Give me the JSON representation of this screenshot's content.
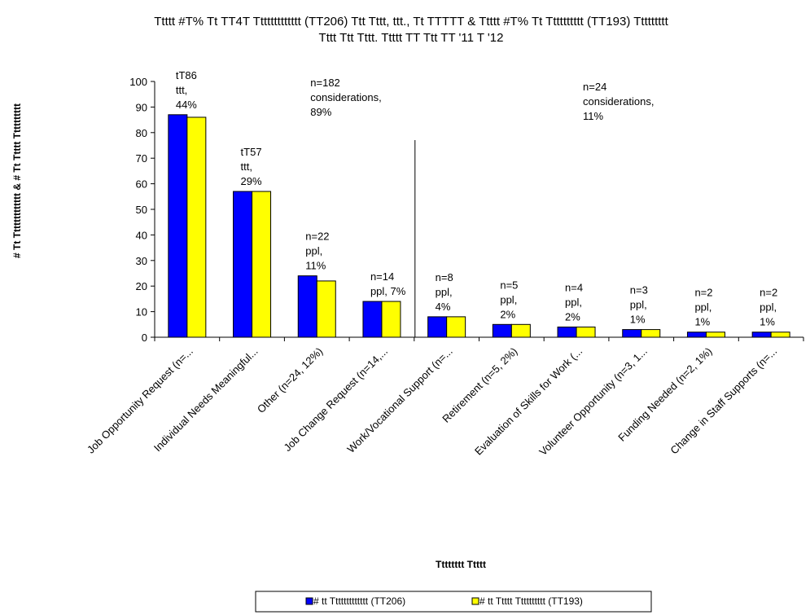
{
  "chart_data": {
    "type": "bar",
    "title_lines": [
      "Ttttt #T% Tt TT4T Ttttttttttttt (TT206) Ttt Tttt, ttt., Tt TTTTT & Ttttt #T%  Tt Tttttttttt (TT193) Ttttttttt",
      "Tttt Ttt Tttt. Ttttt TT Ttt TT '11 T '12"
    ],
    "xlabel": "Tttttttt Ttttt",
    "ylabel": "# Tt Ttttttttttttt & # Tt Ttttt Tttttttttt",
    "ylim": [
      0,
      100
    ],
    "yticks": [
      0,
      10,
      20,
      30,
      40,
      50,
      60,
      70,
      80,
      90,
      100
    ],
    "grid": false,
    "legend_position": "bottom",
    "categories": [
      "Job Opportunity Request (n=...",
      "Individual Needs Meaningful...",
      "Other (n=24, 12%)",
      "Job Change Request (n=14,...",
      "Work/Vocational Support (n=...",
      "Retirement (n=5, 2%)",
      "Evaluation of Skills for Work (...",
      "Volunteer Opportunity (n=3, 1...",
      "Funding Needed (n=2, 1%)",
      "Change in Staff Supports (n=..."
    ],
    "series": [
      {
        "name": "# tt Ttttttttttttt (TT206)",
        "color": "#0000ff",
        "values": [
          87,
          57,
          24,
          14,
          8,
          5,
          4,
          3,
          2,
          2
        ]
      },
      {
        "name": "# tt Ttttt Tttttttttt (TT193)",
        "color": "#ffff00",
        "values": [
          86,
          57,
          22,
          14,
          8,
          5,
          4,
          3,
          2,
          2
        ]
      }
    ],
    "bar_annotations": [
      [
        "tT86",
        "ttt,",
        "44%"
      ],
      [
        "tT57",
        "ttt,",
        "29%"
      ],
      [
        "n=22",
        "ppl,",
        "11%"
      ],
      [
        "n=14",
        "ppl, 7%"
      ],
      [
        "n=8",
        "ppl,",
        "4%"
      ],
      [
        "n=5",
        "ppl,",
        "2%"
      ],
      [
        "n=4",
        "ppl,",
        "2%"
      ],
      [
        "n=3",
        "ppl,",
        "1%"
      ],
      [
        "n=2",
        "ppl,",
        "1%"
      ],
      [
        "n=2",
        "ppl,",
        "1%"
      ]
    ],
    "group_annotations": [
      [
        "n=182",
        "considerations,",
        "89%"
      ],
      [
        "n=24",
        "considerations,",
        "11%"
      ]
    ],
    "divider_after_category": 3
  }
}
